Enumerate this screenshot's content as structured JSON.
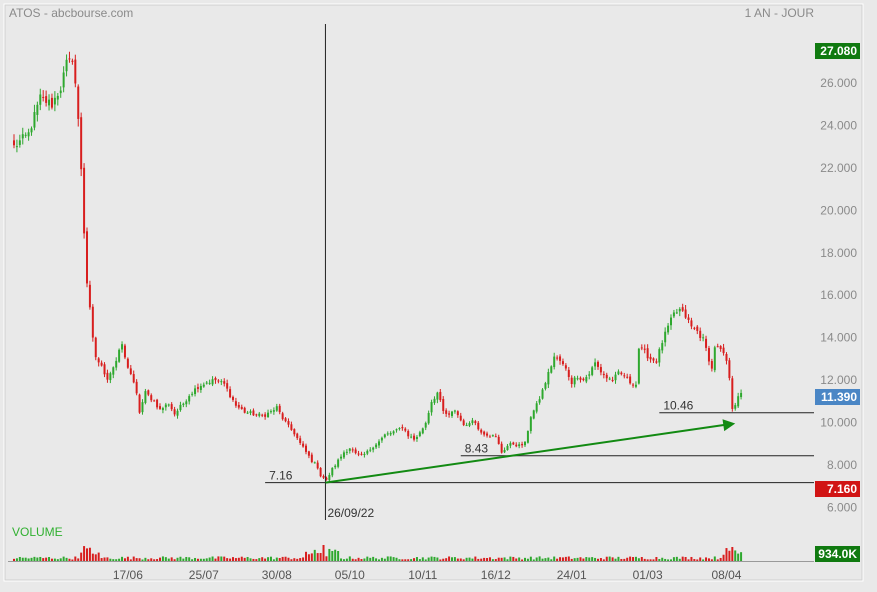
{
  "header": {
    "source": "ATOS - abcbourse.com",
    "period": "1 AN - JOUR"
  },
  "colors": {
    "background": "#e9e9e9",
    "panel_border": "#ffffff",
    "up_candle": "#2ea82e",
    "down_candle": "#d81e1e",
    "trend_arrow": "#128a12",
    "badge_green": "#107a10",
    "badge_blue": "#4a86c5",
    "badge_red": "#d11414",
    "volume_label": "#30b030"
  },
  "chart_data": {
    "type": "candlestick",
    "title": "ATOS - abcbourse.com",
    "period": "1 AN - JOUR",
    "y_range": [
      5.4,
      28.6
    ],
    "y_ticks": [
      "6.000",
      "8.000",
      "10.000",
      "12.000",
      "14.000",
      "16.000",
      "18.000",
      "20.000",
      "22.000",
      "24.000",
      "26.000"
    ],
    "x_ticks": [
      {
        "label": "17/06",
        "index": 39
      },
      {
        "label": "25/07",
        "index": 65
      },
      {
        "label": "30/08",
        "index": 90
      },
      {
        "label": "05/10",
        "index": 115
      },
      {
        "label": "10/11",
        "index": 140
      },
      {
        "label": "16/12",
        "index": 165
      },
      {
        "label": "24/01",
        "index": 191
      },
      {
        "label": "01/03",
        "index": 217
      },
      {
        "label": "08/04",
        "index": 244
      }
    ],
    "badges": {
      "high": "27.080",
      "last": "11.390",
      "low": "7.160"
    },
    "annotations": {
      "low_date": "26/09/22",
      "level_low": "7.16",
      "level_mid": "8.43",
      "level_recent": "10.46"
    },
    "levels": [
      {
        "name": "level_low",
        "value": 7.16,
        "from_index": 86
      },
      {
        "name": "level_mid",
        "value": 8.43,
        "from_index": 153
      },
      {
        "name": "level_recent",
        "value": 10.46,
        "from_index": 221
      }
    ],
    "trend_arrow": {
      "from": [
        107,
        7.16
      ],
      "to": [
        247,
        9.95
      ]
    },
    "low_marker_index": 107,
    "volume": {
      "label": "VOLUME",
      "last": "934.0K"
    },
    "anchors": [
      [
        0,
        23.0
      ],
      [
        5,
        23.6
      ],
      [
        9,
        25.3
      ],
      [
        13,
        25.0
      ],
      [
        16,
        25.8
      ],
      [
        18,
        26.9
      ],
      [
        20,
        27.0
      ],
      [
        21,
        26.0
      ],
      [
        22,
        24.2
      ],
      [
        23,
        22.0
      ],
      [
        24,
        19.0
      ],
      [
        25,
        16.6
      ],
      [
        26,
        15.3
      ],
      [
        27,
        13.9
      ],
      [
        28,
        13.1
      ],
      [
        30,
        12.6
      ],
      [
        32,
        12.1
      ],
      [
        35,
        12.9
      ],
      [
        37,
        13.7
      ],
      [
        38,
        13.0
      ],
      [
        40,
        12.3
      ],
      [
        42,
        11.3
      ],
      [
        43,
        10.5
      ],
      [
        45,
        11.4
      ],
      [
        48,
        11.0
      ],
      [
        50,
        10.6
      ],
      [
        53,
        10.9
      ],
      [
        55,
        10.4
      ],
      [
        58,
        10.9
      ],
      [
        60,
        11.3
      ],
      [
        63,
        11.7
      ],
      [
        66,
        11.9
      ],
      [
        69,
        12.0
      ],
      [
        72,
        11.8
      ],
      [
        74,
        11.3
      ],
      [
        76,
        10.8
      ],
      [
        79,
        10.5
      ],
      [
        82,
        10.4
      ],
      [
        85,
        10.3
      ],
      [
        88,
        10.5
      ],
      [
        90,
        10.7
      ],
      [
        92,
        10.2
      ],
      [
        94,
        9.8
      ],
      [
        96,
        9.5
      ],
      [
        98,
        9.0
      ],
      [
        100,
        8.6
      ],
      [
        102,
        8.2
      ],
      [
        104,
        7.9
      ],
      [
        105,
        7.5
      ],
      [
        107,
        7.3
      ],
      [
        109,
        7.8
      ],
      [
        111,
        8.2
      ],
      [
        113,
        8.6
      ],
      [
        115,
        8.8
      ],
      [
        117,
        8.5
      ],
      [
        119,
        8.4
      ],
      [
        121,
        8.6
      ],
      [
        123,
        8.9
      ],
      [
        125,
        9.1
      ],
      [
        127,
        9.4
      ],
      [
        129,
        9.5
      ],
      [
        131,
        9.6
      ],
      [
        133,
        9.8
      ],
      [
        135,
        9.4
      ],
      [
        137,
        9.2
      ],
      [
        139,
        9.5
      ],
      [
        141,
        10.0
      ],
      [
        143,
        11.0
      ],
      [
        145,
        11.4
      ],
      [
        147,
        10.5
      ],
      [
        149,
        10.3
      ],
      [
        151,
        10.6
      ],
      [
        153,
        10.1
      ],
      [
        155,
        9.8
      ],
      [
        157,
        10.2
      ],
      [
        159,
        9.7
      ],
      [
        161,
        9.5
      ],
      [
        163,
        9.4
      ],
      [
        165,
        9.3
      ],
      [
        167,
        8.6
      ],
      [
        169,
        8.9
      ],
      [
        171,
        9.0
      ],
      [
        173,
        8.9
      ],
      [
        175,
        9.0
      ],
      [
        177,
        10.3
      ],
      [
        179,
        10.8
      ],
      [
        181,
        11.5
      ],
      [
        183,
        12.3
      ],
      [
        185,
        13.1
      ],
      [
        187,
        12.9
      ],
      [
        189,
        12.5
      ],
      [
        191,
        11.9
      ],
      [
        193,
        12.2
      ],
      [
        195,
        12.0
      ],
      [
        197,
        12.3
      ],
      [
        199,
        12.8
      ],
      [
        201,
        12.4
      ],
      [
        203,
        12.1
      ],
      [
        205,
        12.0
      ],
      [
        207,
        12.3
      ],
      [
        209,
        12.2
      ],
      [
        211,
        11.9
      ],
      [
        213,
        11.8
      ],
      [
        214,
        13.5
      ],
      [
        216,
        13.3
      ],
      [
        218,
        13.0
      ],
      [
        220,
        12.9
      ],
      [
        222,
        13.8
      ],
      [
        224,
        14.5
      ],
      [
        226,
        15.1
      ],
      [
        228,
        15.3
      ],
      [
        230,
        15.0
      ],
      [
        232,
        14.5
      ],
      [
        234,
        14.3
      ],
      [
        236,
        13.9
      ],
      [
        238,
        13.0
      ],
      [
        239,
        12.5
      ],
      [
        240,
        13.6
      ],
      [
        242,
        13.4
      ],
      [
        244,
        12.9
      ],
      [
        245,
        12.0
      ],
      [
        246,
        10.7
      ],
      [
        247,
        10.9
      ],
      [
        248,
        11.3
      ],
      [
        249,
        11.39
      ]
    ]
  }
}
